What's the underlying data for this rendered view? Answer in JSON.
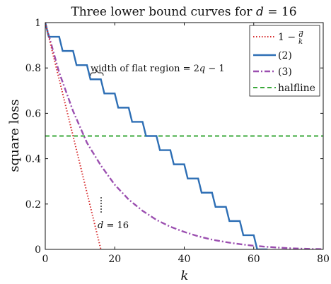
{
  "chart_data": {
    "type": "line",
    "title": "Three lower bound curves for d = 16",
    "xlabel": "k",
    "ylabel": "square loss",
    "xlim": [
      0,
      80
    ],
    "ylim": [
      0,
      1
    ],
    "xticks": [
      0,
      20,
      40,
      60,
      80
    ],
    "yticks": [
      0,
      0.2,
      0.4,
      0.6,
      0.8,
      1
    ],
    "grid": false,
    "legend_position": "top-right",
    "series": [
      {
        "name": "1 − d/k",
        "style": "dotted",
        "color": "#d62728",
        "x": [
          0,
          16
        ],
        "y": [
          1,
          0
        ]
      },
      {
        "name": "(2)",
        "style": "solid-step",
        "color": "#2e6fb5",
        "x": [
          0,
          1,
          4,
          5,
          8,
          9,
          12,
          13,
          16,
          17,
          20,
          21,
          24,
          25,
          28,
          29,
          32,
          33,
          36,
          37,
          40,
          41,
          44,
          45,
          48,
          49,
          52,
          53,
          56,
          57,
          60,
          61,
          64
        ],
        "y": [
          1,
          0.9375,
          0.9375,
          0.875,
          0.875,
          0.8125,
          0.8125,
          0.75,
          0.75,
          0.6875,
          0.6875,
          0.625,
          0.625,
          0.5625,
          0.5625,
          0.5,
          0.5,
          0.4375,
          0.4375,
          0.375,
          0.375,
          0.3125,
          0.3125,
          0.25,
          0.25,
          0.1875,
          0.1875,
          0.125,
          0.125,
          0.0625,
          0.0625,
          0,
          0
        ]
      },
      {
        "name": "(3)",
        "style": "dashdot",
        "color": "#9b4fb0",
        "x": [
          0,
          4,
          8,
          12,
          16,
          20,
          24,
          28,
          32,
          36,
          40,
          44,
          48,
          52,
          56,
          60,
          64,
          68,
          72,
          76,
          80
        ],
        "y": [
          1,
          0.78,
          0.61,
          0.47,
          0.37,
          0.285,
          0.22,
          0.17,
          0.13,
          0.1,
          0.077,
          0.058,
          0.043,
          0.032,
          0.023,
          0.016,
          0.011,
          0.007,
          0.004,
          0.002,
          0.001
        ]
      },
      {
        "name": "halfline",
        "style": "dashed",
        "color": "#3aa83a",
        "x": [
          0,
          80
        ],
        "y": [
          0.5,
          0.5
        ]
      }
    ],
    "annotations": [
      {
        "text": "width of flat region = 2q − 1",
        "x": 13.5,
        "y": 0.775
      },
      {
        "text": "d = 16",
        "x": 16,
        "y": 0.11
      }
    ]
  }
}
